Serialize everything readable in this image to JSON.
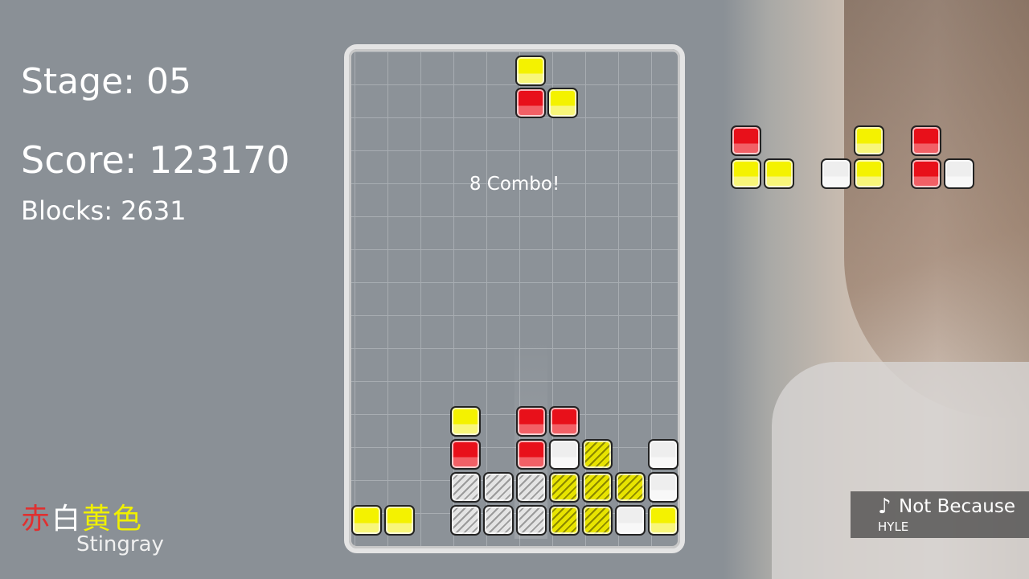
{
  "hud": {
    "stage": "Stage: 05",
    "score": "Score: 123170",
    "blocks": "Blocks: 2631"
  },
  "combo": "8 Combo!",
  "logo": {
    "chars": [
      "赤",
      "白",
      "黄",
      "色"
    ],
    "colors": [
      "#e03030",
      "#ffffff",
      "#f0f000",
      "#f0f000"
    ],
    "subtitle": "Stingray"
  },
  "music": {
    "icon": "music-note-icon",
    "note": "♪",
    "title": "Not Because",
    "artist": "HYLE"
  },
  "colors": {
    "yellow": "#f4f200",
    "red": "#e8101a",
    "white": "#eeeeee"
  },
  "board": {
    "columns": 10,
    "rows": 15,
    "falling_piece": [
      {
        "col": 5,
        "row": 0,
        "color": "yellow"
      },
      {
        "col": 5,
        "row": 1,
        "color": "red"
      },
      {
        "col": 6,
        "row": 1,
        "color": "yellow"
      }
    ],
    "cells": [
      {
        "col": 3,
        "row": 11,
        "color": "yellow"
      },
      {
        "col": 5,
        "row": 11,
        "color": "red"
      },
      {
        "col": 6,
        "row": 11,
        "color": "red"
      },
      {
        "col": 3,
        "row": 12,
        "color": "red"
      },
      {
        "col": 5,
        "row": 12,
        "color": "red"
      },
      {
        "col": 6,
        "row": 12,
        "color": "white"
      },
      {
        "col": 7,
        "row": 12,
        "color": "hatch-yellow"
      },
      {
        "col": 9,
        "row": 12,
        "color": "white"
      },
      {
        "col": 3,
        "row": 13,
        "color": "hatch-white"
      },
      {
        "col": 4,
        "row": 13,
        "color": "hatch-white"
      },
      {
        "col": 5,
        "row": 13,
        "color": "hatch-white"
      },
      {
        "col": 6,
        "row": 13,
        "color": "hatch-yellow"
      },
      {
        "col": 7,
        "row": 13,
        "color": "hatch-yellow"
      },
      {
        "col": 8,
        "row": 13,
        "color": "hatch-yellow"
      },
      {
        "col": 9,
        "row": 13,
        "color": "white"
      },
      {
        "col": 0,
        "row": 14,
        "color": "yellow"
      },
      {
        "col": 1,
        "row": 14,
        "color": "yellow"
      },
      {
        "col": 3,
        "row": 14,
        "color": "hatch-white"
      },
      {
        "col": 4,
        "row": 14,
        "color": "hatch-white"
      },
      {
        "col": 5,
        "row": 14,
        "color": "hatch-white"
      },
      {
        "col": 6,
        "row": 14,
        "color": "hatch-yellow"
      },
      {
        "col": 7,
        "row": 14,
        "color": "hatch-yellow"
      },
      {
        "col": 8,
        "row": 14,
        "color": "white"
      },
      {
        "col": 9,
        "row": 14,
        "color": "yellow"
      }
    ]
  },
  "next_pieces": [
    [
      {
        "col": 0,
        "row": 0,
        "color": "red"
      },
      {
        "col": 0,
        "row": 1,
        "color": "yellow"
      },
      {
        "col": 1,
        "row": 1,
        "color": "yellow"
      }
    ],
    [
      {
        "col": 1,
        "row": 0,
        "color": "yellow"
      },
      {
        "col": 0,
        "row": 1,
        "color": "white"
      },
      {
        "col": 1,
        "row": 1,
        "color": "yellow"
      }
    ],
    [
      {
        "col": 0,
        "row": 0,
        "color": "red"
      },
      {
        "col": 0,
        "row": 1,
        "color": "red"
      },
      {
        "col": 1,
        "row": 1,
        "color": "white"
      }
    ]
  ]
}
